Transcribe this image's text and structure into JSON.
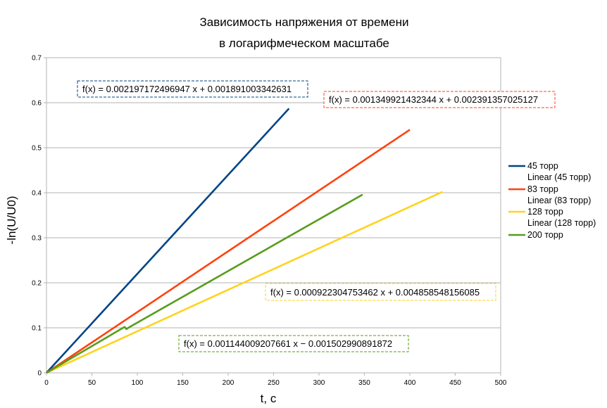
{
  "chart_data": {
    "type": "line",
    "title": "Зависимость напряжения от времени",
    "subtitle": "в логарифмеческом масштабе",
    "xlabel": "t, c",
    "ylabel": "-ln(U/U0)",
    "xlim": [
      0,
      500
    ],
    "ylim": [
      0,
      0.7
    ],
    "xticks": [
      0,
      50,
      100,
      150,
      200,
      250,
      300,
      350,
      400,
      450,
      500
    ],
    "yticks": [
      0,
      0.1,
      0.2,
      0.3,
      0.4,
      0.5,
      0.6,
      0.7
    ],
    "grid": "horizontal",
    "legend_position": "right",
    "series": [
      {
        "name": "45 торр",
        "color": "#004586",
        "x": [
          0,
          267
        ],
        "y": [
          0,
          0.587
        ]
      },
      {
        "name": "83 торр",
        "color": "#ff420e",
        "x": [
          0,
          400
        ],
        "y": [
          0,
          0.54
        ]
      },
      {
        "name": "128 торр",
        "color": "#ffd320",
        "x": [
          0,
          436
        ],
        "y": [
          0,
          0.402
        ]
      },
      {
        "name": "200 торр",
        "color": "#579d1c",
        "x": [
          0,
          86,
          88,
          90,
          348
        ],
        "y": [
          0,
          0.102,
          0.097,
          0.1,
          0.396
        ]
      }
    ],
    "trendlines": [
      {
        "name": "Linear (45 торр)",
        "color": "#004586",
        "equation": "f(x) = 0.002197172496947 x + 0.001891003342631"
      },
      {
        "name": "Linear (83 торр)",
        "color": "#ff420e",
        "equation": "f(x) = 0.001349921432344 x + 0.002391357025127"
      },
      {
        "name": "Linear (128 торр)",
        "color": "#ffd320",
        "equation": "f(x) = 0.000922304753462 x + 0.004858548156085"
      },
      {
        "name": "",
        "color": "#579d1c",
        "equation": "f(x) = 0.001144009207661 x − 0.001502990891872"
      }
    ]
  }
}
